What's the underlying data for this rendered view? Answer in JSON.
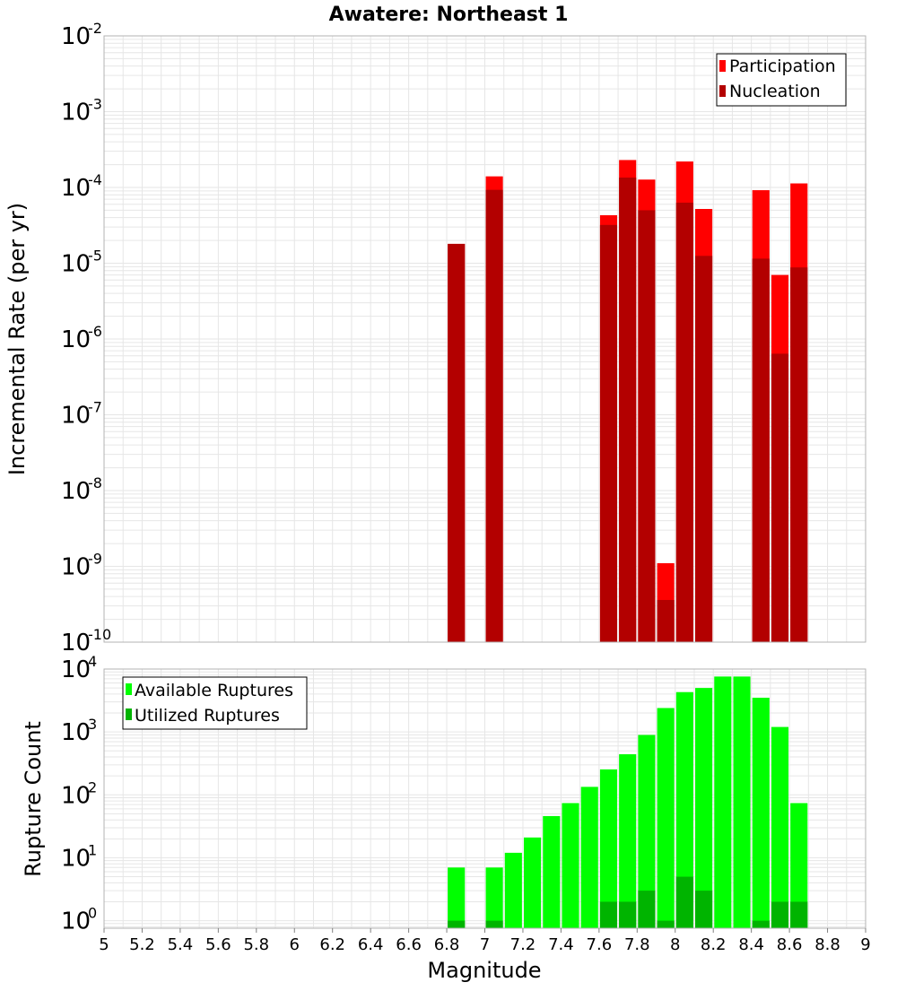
{
  "title": "Awatere: Northeast 1",
  "colors": {
    "participation": "#ff0000",
    "nucleation": "#b30000",
    "available": "#00ff00",
    "utilized": "#00b400",
    "grid": "#e6e6e6",
    "frame": "#b3b3b3",
    "background": "#ffffff"
  },
  "chart_data": [
    {
      "type": "bar",
      "ylabel": "Incremental Rate (per yr)",
      "yscale": "log",
      "ylim_exponents": [
        -10,
        -2
      ],
      "ytick_labels": [
        "-10",
        "-9",
        "-8",
        "-7",
        "-6",
        "-5",
        "-4",
        "-3",
        "-2"
      ],
      "xlim": [
        5,
        9
      ],
      "bar_width": 0.09,
      "legend_position": "top-right",
      "legend": [
        "Participation",
        "Nucleation"
      ],
      "series": [
        {
          "name": "Participation",
          "x": [
            6.85,
            7.05,
            7.65,
            7.75,
            7.85,
            7.95,
            8.05,
            8.15,
            8.45,
            8.55,
            8.65
          ],
          "values": [
            1.8e-05,
            0.00014,
            4.3e-05,
            0.00023,
            0.000127,
            1.1e-09,
            0.00022,
            5.2e-05,
            9.2e-05,
            7e-06,
            0.000113
          ]
        },
        {
          "name": "Nucleation",
          "x": [
            6.85,
            7.05,
            7.65,
            7.75,
            7.85,
            7.95,
            8.05,
            8.15,
            8.45,
            8.55,
            8.65
          ],
          "values": [
            1.8e-05,
            9.3e-05,
            3.2e-05,
            0.000135,
            5e-05,
            3.6e-10,
            6.3e-05,
            1.25e-05,
            1.15e-05,
            6.4e-07,
            8.8e-06
          ]
        }
      ]
    },
    {
      "type": "bar",
      "xlabel": "Magnitude",
      "ylabel": "Rupture Count",
      "yscale": "log",
      "ylim_exponents": [
        -0.12,
        4
      ],
      "ytick_labels": [
        "0",
        "1",
        "2",
        "3",
        "4"
      ],
      "xlim": [
        5,
        9
      ],
      "xtick_labels": [
        "5",
        "5.2",
        "5.4",
        "5.6",
        "5.8",
        "6",
        "6.2",
        "6.4",
        "6.6",
        "6.8",
        "7",
        "7.2",
        "7.4",
        "7.6",
        "7.8",
        "8",
        "8.2",
        "8.4",
        "8.6",
        "8.8",
        "9"
      ],
      "bar_width": 0.09,
      "legend_position": "top-left",
      "legend": [
        "Available Ruptures",
        "Utilized Ruptures"
      ],
      "series": [
        {
          "name": "Available Ruptures",
          "x": [
            6.85,
            7.05,
            7.15,
            7.25,
            7.35,
            7.45,
            7.55,
            7.65,
            7.75,
            7.85,
            7.95,
            8.05,
            8.15,
            8.25,
            8.35,
            8.45,
            8.55,
            8.65
          ],
          "values": [
            7,
            7,
            12,
            21,
            46,
            74,
            134,
            254,
            442,
            896,
            2400,
            4300,
            5000,
            7600,
            7600,
            3500,
            1200,
            74
          ]
        },
        {
          "name": "Utilized Ruptures",
          "x": [
            6.85,
            7.05,
            7.65,
            7.75,
            7.85,
            7.95,
            8.05,
            8.15,
            8.45,
            8.55,
            8.65
          ],
          "values": [
            1,
            1,
            2,
            2,
            3,
            1,
            5,
            3,
            1,
            2,
            2
          ]
        }
      ]
    }
  ]
}
